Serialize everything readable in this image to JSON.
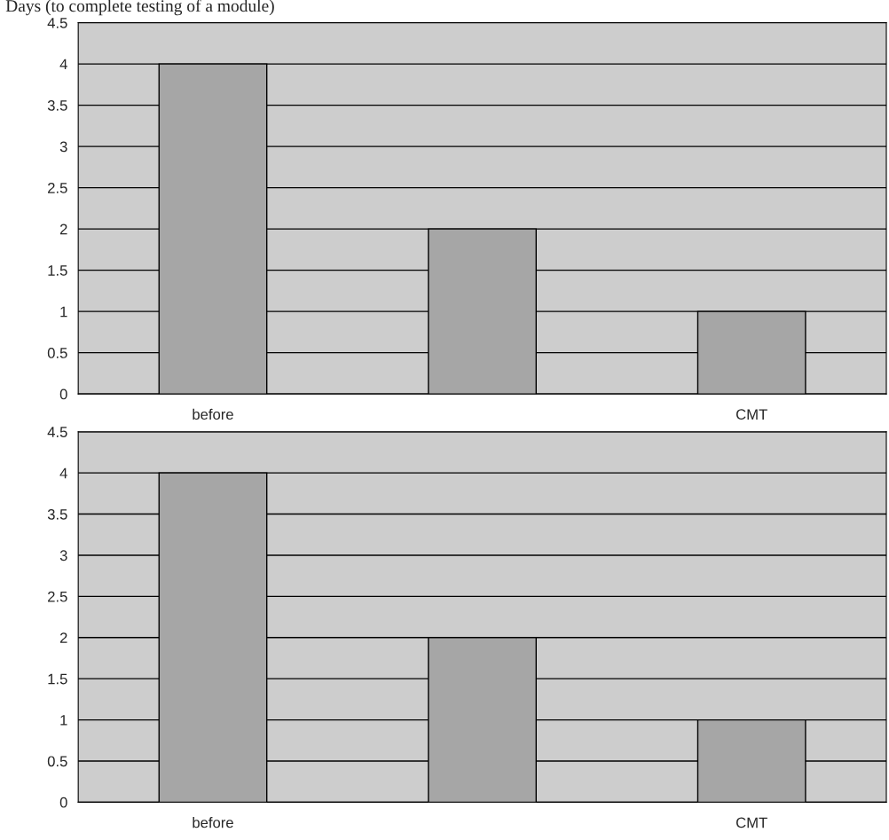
{
  "chart_data": [
    {
      "type": "bar",
      "ylabel": "Days (to complete testing of a module)",
      "categories": [
        "before",
        null,
        "CMT"
      ],
      "values": [
        4,
        2,
        1
      ],
      "color": "#a6a6a6",
      "ylim": [
        0,
        4.5
      ],
      "yticks": [
        0,
        0.5,
        1,
        1.5,
        2,
        2.5,
        3,
        3.5,
        4,
        4.5
      ],
      "grid": "y",
      "legend": false
    },
    {
      "type": "bar",
      "categories": [
        "before",
        null,
        "CMT"
      ],
      "values": [
        4,
        2,
        1
      ],
      "color": "#a6a6a6",
      "ylim": [
        0,
        4.5
      ],
      "yticks": [
        0,
        0.5,
        1,
        1.5,
        2,
        2.5,
        3,
        3.5,
        4,
        4.5
      ],
      "grid": "y",
      "legend": false
    }
  ]
}
